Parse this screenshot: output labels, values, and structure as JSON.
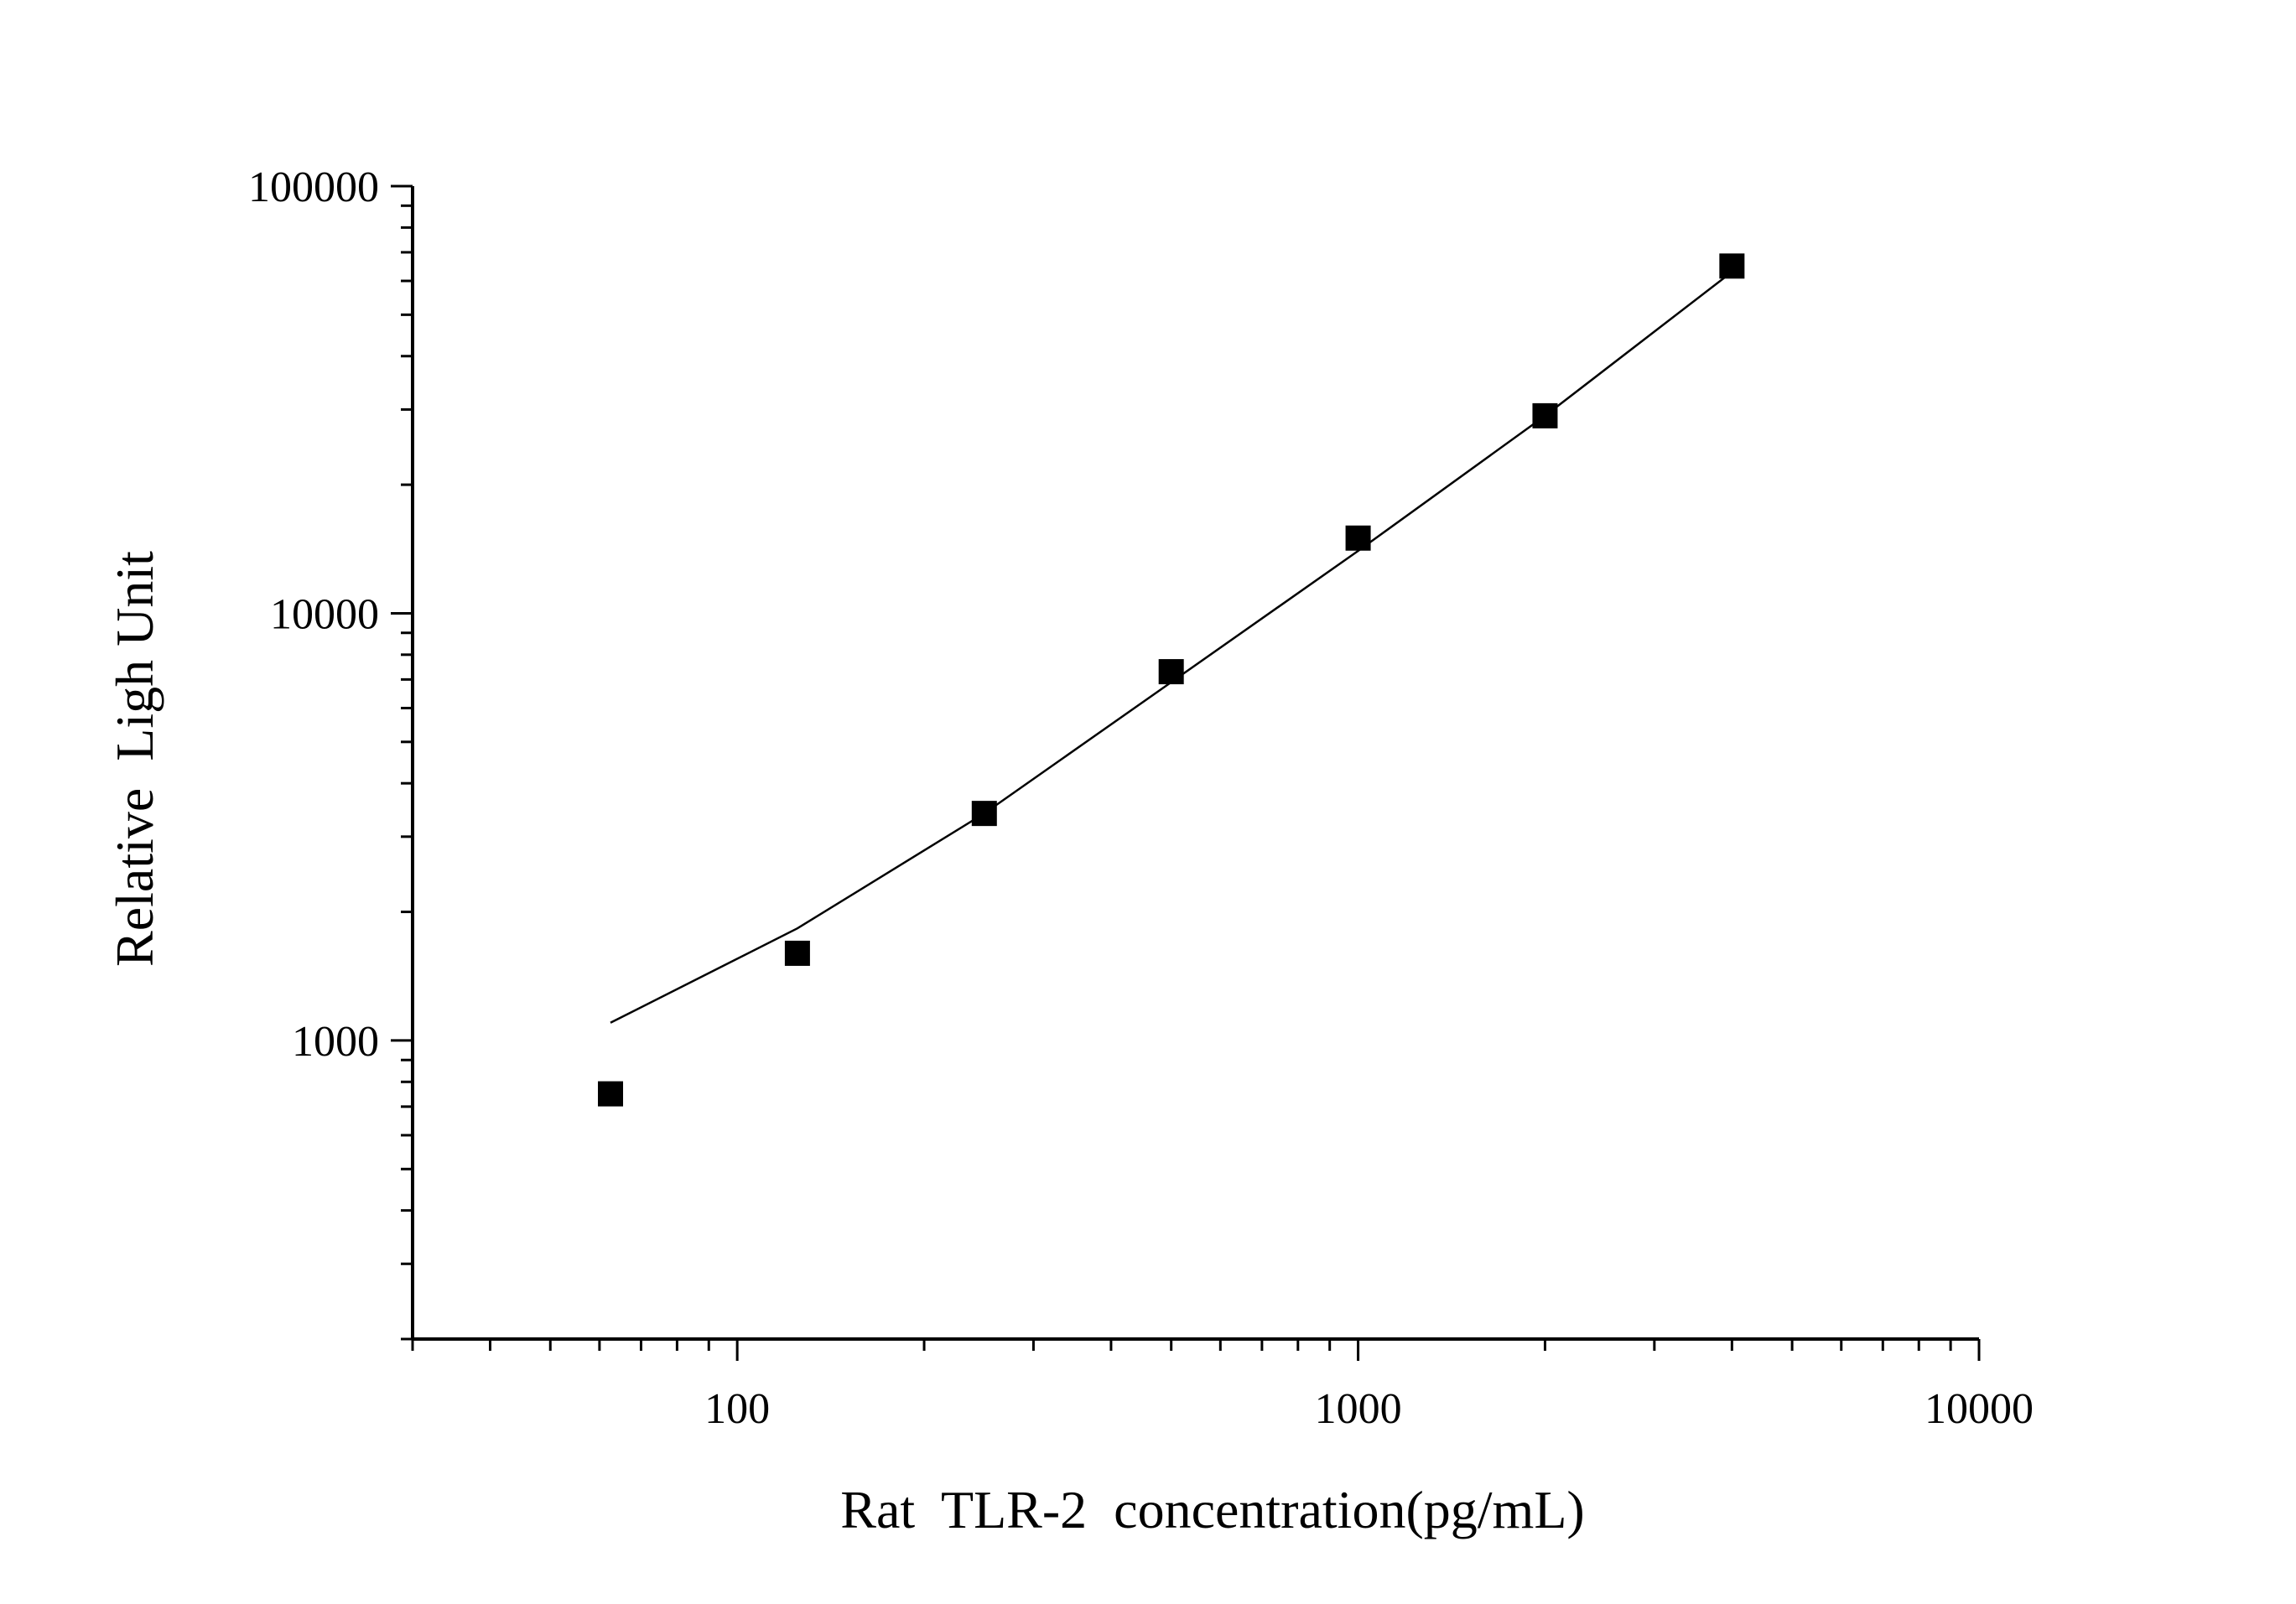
{
  "chart_data": {
    "type": "scatter",
    "title": "",
    "xlabel": "Rat  TLR-2  concentration(pg/mL)",
    "ylabel": "Relative  Ligh Unit",
    "x_scale": "log",
    "y_scale": "log",
    "xlim": [
      30,
      10000
    ],
    "ylim": [
      200,
      100000
    ],
    "x_ticks": [
      100,
      1000,
      10000
    ],
    "x_tick_labels": [
      "100",
      "1000",
      "10000"
    ],
    "y_ticks": [
      1000,
      10000,
      100000
    ],
    "y_tick_labels": [
      "1000",
      "10000",
      "100000"
    ],
    "grid": false,
    "legend": "none",
    "series": [
      {
        "marker": "square",
        "x": [
          62.5,
          125,
          250,
          500,
          1000,
          2000,
          4000
        ],
        "y": [
          750,
          1600,
          3400,
          7300,
          15000,
          29000,
          65000
        ]
      }
    ],
    "fit_curve": {
      "x": [
        62.5,
        125,
        250,
        500,
        1000,
        2000,
        4000
      ],
      "y": [
        1100,
        1830,
        3400,
        6900,
        14000,
        29000,
        63000
      ]
    },
    "colors": {
      "marker": "#000000",
      "line": "#000000",
      "axis": "#000000"
    }
  }
}
